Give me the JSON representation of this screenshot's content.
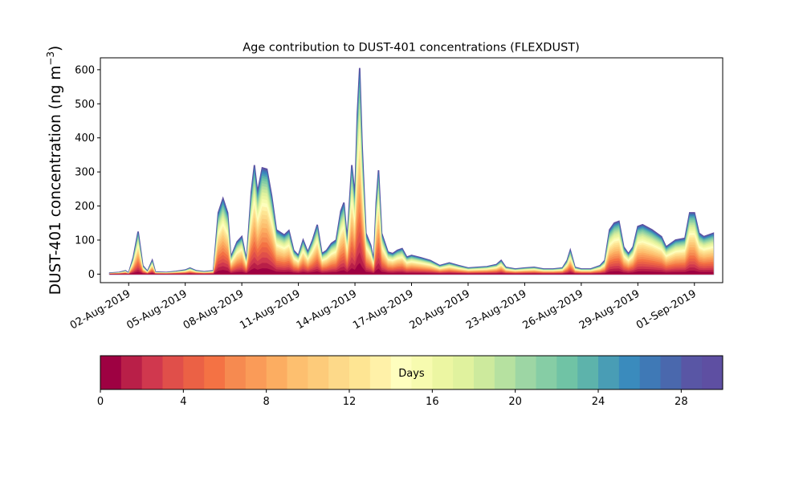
{
  "chart_data": {
    "type": "area",
    "title": "Age contribution to DUST-401 concentrations (FLEXDUST)",
    "ylabel": "DUST-401 concentration (ng m",
    "ylabel_sup": "−3",
    "ylabel_close": ")",
    "xlabel": "",
    "ylim": [
      -25,
      635
    ],
    "xlim": [
      "2019-07-31T12:00",
      "2019-09-02T12:00"
    ],
    "yticks": [
      0,
      100,
      200,
      300,
      400,
      500,
      600
    ],
    "xticks": [
      "2019-08-02",
      "2019-08-05",
      "2019-08-08",
      "2019-08-11",
      "2019-08-14",
      "2019-08-17",
      "2019-08-20",
      "2019-08-23",
      "2019-08-26",
      "2019-08-29",
      "2019-09-01"
    ],
    "xtick_labels": [
      "02-Aug-2019",
      "05-Aug-2019",
      "08-Aug-2019",
      "11-Aug-2019",
      "14-Aug-2019",
      "17-Aug-2019",
      "20-Aug-2019",
      "23-Aug-2019",
      "26-Aug-2019",
      "29-Aug-2019",
      "01-Sep-2019"
    ],
    "grid": false,
    "stacked": true,
    "n_layers": 30,
    "series_note": "stacked contributions by particle age 0–30 days; total concentration shown below",
    "total": [
      [
        "2019-08-01T00:00",
        3
      ],
      [
        "2019-08-01T12:00",
        5
      ],
      [
        "2019-08-01T20:00",
        10
      ],
      [
        "2019-08-02T00:00",
        3
      ],
      [
        "2019-08-02T06:00",
        50
      ],
      [
        "2019-08-02T12:00",
        125
      ],
      [
        "2019-08-02T18:00",
        25
      ],
      [
        "2019-08-03T00:00",
        8
      ],
      [
        "2019-08-03T06:00",
        40
      ],
      [
        "2019-08-03T10:00",
        6
      ],
      [
        "2019-08-04T00:00",
        5
      ],
      [
        "2019-08-04T12:00",
        8
      ],
      [
        "2019-08-05T00:00",
        12
      ],
      [
        "2019-08-05T06:00",
        18
      ],
      [
        "2019-08-05T14:00",
        10
      ],
      [
        "2019-08-06T00:00",
        7
      ],
      [
        "2019-08-06T12:00",
        10
      ],
      [
        "2019-08-06T18:00",
        180
      ],
      [
        "2019-08-07T00:00",
        222
      ],
      [
        "2019-08-07T06:00",
        180
      ],
      [
        "2019-08-07T10:00",
        50
      ],
      [
        "2019-08-07T18:00",
        95
      ],
      [
        "2019-08-08T00:00",
        110
      ],
      [
        "2019-08-08T06:00",
        40
      ],
      [
        "2019-08-08T12:00",
        240
      ],
      [
        "2019-08-08T16:00",
        320
      ],
      [
        "2019-08-08T20:00",
        240
      ],
      [
        "2019-08-09T02:00",
        312
      ],
      [
        "2019-08-09T08:00",
        308
      ],
      [
        "2019-08-09T14:00",
        230
      ],
      [
        "2019-08-09T20:00",
        130
      ],
      [
        "2019-08-10T06:00",
        115
      ],
      [
        "2019-08-10T12:00",
        128
      ],
      [
        "2019-08-10T18:00",
        70
      ],
      [
        "2019-08-11T00:00",
        55
      ],
      [
        "2019-08-11T06:00",
        100
      ],
      [
        "2019-08-11T12:00",
        65
      ],
      [
        "2019-08-11T18:00",
        100
      ],
      [
        "2019-08-12T00:00",
        145
      ],
      [
        "2019-08-12T06:00",
        60
      ],
      [
        "2019-08-12T12:00",
        70
      ],
      [
        "2019-08-12T18:00",
        90
      ],
      [
        "2019-08-13T00:00",
        100
      ],
      [
        "2019-08-13T06:00",
        185
      ],
      [
        "2019-08-13T10:00",
        210
      ],
      [
        "2019-08-13T14:00",
        100
      ],
      [
        "2019-08-13T20:00",
        320
      ],
      [
        "2019-08-14T00:00",
        230
      ],
      [
        "2019-08-14T03:00",
        470
      ],
      [
        "2019-08-14T06:00",
        605
      ],
      [
        "2019-08-14T09:00",
        380
      ],
      [
        "2019-08-14T14:00",
        120
      ],
      [
        "2019-08-14T20:00",
        85
      ],
      [
        "2019-08-15T00:00",
        40
      ],
      [
        "2019-08-15T03:00",
        210
      ],
      [
        "2019-08-15T06:00",
        305
      ],
      [
        "2019-08-15T10:00",
        120
      ],
      [
        "2019-08-15T18:00",
        65
      ],
      [
        "2019-08-16T00:00",
        60
      ],
      [
        "2019-08-16T06:00",
        70
      ],
      [
        "2019-08-16T12:00",
        75
      ],
      [
        "2019-08-16T18:00",
        50
      ],
      [
        "2019-08-17T00:00",
        55
      ],
      [
        "2019-08-17T12:00",
        48
      ],
      [
        "2019-08-18T00:00",
        40
      ],
      [
        "2019-08-18T12:00",
        25
      ],
      [
        "2019-08-19T00:00",
        33
      ],
      [
        "2019-08-19T12:00",
        25
      ],
      [
        "2019-08-20T00:00",
        18
      ],
      [
        "2019-08-20T12:00",
        20
      ],
      [
        "2019-08-21T00:00",
        22
      ],
      [
        "2019-08-21T12:00",
        28
      ],
      [
        "2019-08-21T18:00",
        40
      ],
      [
        "2019-08-22T00:00",
        20
      ],
      [
        "2019-08-22T12:00",
        15
      ],
      [
        "2019-08-23T00:00",
        18
      ],
      [
        "2019-08-23T12:00",
        20
      ],
      [
        "2019-08-24T00:00",
        15
      ],
      [
        "2019-08-24T12:00",
        15
      ],
      [
        "2019-08-25T00:00",
        18
      ],
      [
        "2019-08-25T06:00",
        40
      ],
      [
        "2019-08-25T10:00",
        70
      ],
      [
        "2019-08-25T16:00",
        20
      ],
      [
        "2019-08-26T00:00",
        15
      ],
      [
        "2019-08-26T12:00",
        15
      ],
      [
        "2019-08-27T00:00",
        25
      ],
      [
        "2019-08-27T06:00",
        40
      ],
      [
        "2019-08-27T12:00",
        130
      ],
      [
        "2019-08-27T18:00",
        150
      ],
      [
        "2019-08-28T00:00",
        155
      ],
      [
        "2019-08-28T06:00",
        80
      ],
      [
        "2019-08-28T12:00",
        60
      ],
      [
        "2019-08-28T18:00",
        80
      ],
      [
        "2019-08-29T00:00",
        140
      ],
      [
        "2019-08-29T06:00",
        145
      ],
      [
        "2019-08-29T18:00",
        130
      ],
      [
        "2019-08-30T06:00",
        110
      ],
      [
        "2019-08-30T12:00",
        80
      ],
      [
        "2019-08-30T18:00",
        90
      ],
      [
        "2019-08-31T00:00",
        100
      ],
      [
        "2019-08-31T12:00",
        105
      ],
      [
        "2019-08-31T18:00",
        180
      ],
      [
        "2019-09-01T00:00",
        180
      ],
      [
        "2019-09-01T06:00",
        120
      ],
      [
        "2019-09-01T12:00",
        110
      ],
      [
        "2019-09-02T00:00",
        120
      ]
    ],
    "colorbar": {
      "label": "Days",
      "min": 0,
      "max": 30,
      "ticks": [
        0,
        4,
        8,
        12,
        16,
        20,
        24,
        28
      ],
      "colors": [
        "#9e0142",
        "#b91f48",
        "#d0384e",
        "#e04f4a",
        "#eb6145",
        "#f47244",
        "#f68a50",
        "#fa9b58",
        "#fcad61",
        "#fdbf6f",
        "#fdcb7a",
        "#fdd989",
        "#fee593",
        "#fff1a8",
        "#fefebe",
        "#f7fbaf",
        "#ecf6a2",
        "#e0f29e",
        "#cdea9d",
        "#b6e1a0",
        "#9dd6a4",
        "#86cda5",
        "#70c3a5",
        "#5db3ab",
        "#499db5",
        "#3a8bbd",
        "#3f79b6",
        "#4a68ad",
        "#5956a5",
        "#5e4fa2"
      ]
    }
  }
}
